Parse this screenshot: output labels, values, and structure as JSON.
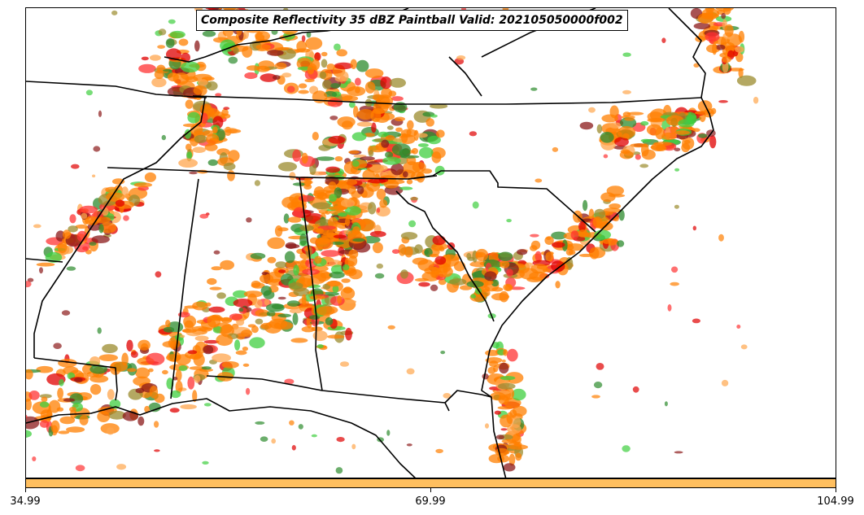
{
  "title": "Composite Reflectivity 35 dBZ Paintball Valid: 202105050000f002",
  "colorbar": {
    "color": "#ffbf5f",
    "ticks": [
      "34.99",
      "69.99",
      "104.99"
    ]
  },
  "member_colors": [
    "#ff7f00",
    "#e00000",
    "#ff3333",
    "#ffa64d",
    "#9b8b2e",
    "#8b1a1a",
    "#3fcf3f",
    "#2e8b2e"
  ],
  "map_layers": [
    "state-borders",
    "coastline",
    "reflectivity-paintball"
  ]
}
